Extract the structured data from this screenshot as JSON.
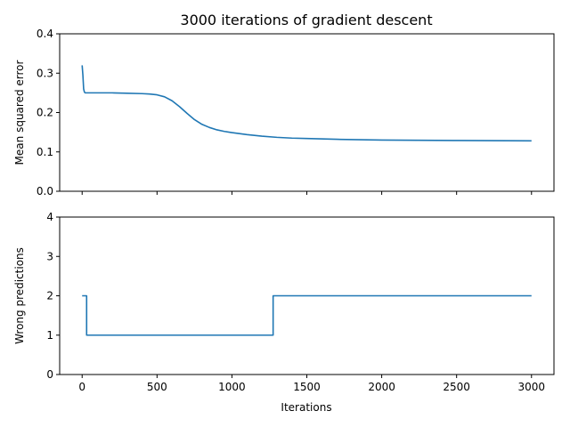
{
  "chart_data": {
    "title": "3000 iterations of gradient descent",
    "type": "line",
    "colors": {
      "series": "#1f77b4"
    },
    "xlabel": "Iterations",
    "x_ticks": [
      "0",
      "500",
      "1000",
      "1500",
      "2000",
      "2500",
      "3000"
    ],
    "xlim": [
      -150,
      3150
    ],
    "grid": false,
    "subplots": [
      {
        "ylabel": "Mean squared error",
        "ylim": [
          0,
          0.4
        ],
        "y_ticks": [
          "0.0",
          "0.1",
          "0.2",
          "0.3",
          "0.4"
        ],
        "series": [
          {
            "x": [
              0,
              5,
              10,
              15,
              20,
              50,
              100,
              200,
              300,
              400,
              450,
              500,
              550,
              600,
              650,
              700,
              750,
              800,
              850,
              900,
              950,
              1000,
              1100,
              1200,
              1300,
              1400,
              1500,
              1700,
              2000,
              2500,
              3000
            ],
            "y": [
              0.32,
              0.295,
              0.26,
              0.252,
              0.25,
              0.25,
              0.25,
              0.25,
              0.249,
              0.248,
              0.247,
              0.245,
              0.24,
              0.23,
              0.215,
              0.198,
              0.182,
              0.17,
              0.162,
              0.156,
              0.152,
              0.149,
              0.144,
              0.14,
              0.137,
              0.135,
              0.134,
              0.132,
              0.13,
              0.129,
              0.128
            ]
          }
        ]
      },
      {
        "ylabel": "Wrong predictions",
        "ylim": [
          0,
          4
        ],
        "y_ticks": [
          "0",
          "1",
          "2",
          "3",
          "4"
        ],
        "series": [
          {
            "x": [
              0,
              30,
              30,
              1275,
              1275,
              3000
            ],
            "y": [
              2,
              2,
              1,
              1,
              2,
              2
            ]
          }
        ]
      }
    ]
  }
}
